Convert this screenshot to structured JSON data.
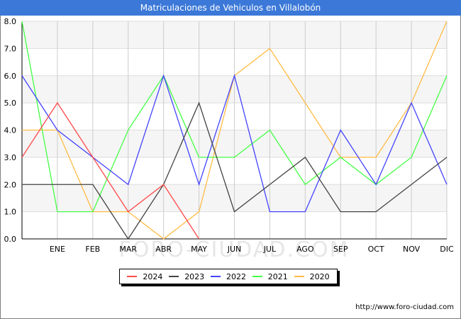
{
  "title": "Matriculaciones de Vehiculos en Villalobón",
  "footer_url": "http://www.foro-ciudad.com",
  "watermark": "FORO-CIUDAD.COM",
  "chart_data": {
    "type": "line",
    "title": "Matriculaciones de Vehiculos en Villalobón",
    "xlabel": "",
    "ylabel": "",
    "categories": [
      "",
      "ENE",
      "FEB",
      "MAR",
      "ABR",
      "MAY",
      "JUN",
      "JUL",
      "AGO",
      "SEP",
      "OCT",
      "NOV",
      "DIC"
    ],
    "ylim": [
      0,
      8
    ],
    "yticks": [
      "0.0",
      "1.0",
      "2.0",
      "3.0",
      "4.0",
      "5.0",
      "6.0",
      "7.0",
      "8.0"
    ],
    "grid": true,
    "legend_position": "bottom-center",
    "series": [
      {
        "name": "2024",
        "color": "#ff4a4a",
        "values": [
          3,
          5,
          3,
          1,
          2,
          0,
          null,
          null,
          null,
          null,
          null,
          null,
          null
        ]
      },
      {
        "name": "2023",
        "color": "#444444",
        "values": [
          2,
          2,
          2,
          0,
          2,
          5,
          1,
          2,
          3,
          1,
          1,
          2,
          3
        ]
      },
      {
        "name": "2022",
        "color": "#4444ff",
        "values": [
          6,
          4,
          3,
          2,
          6,
          2,
          6,
          1,
          1,
          4,
          2,
          5,
          2
        ]
      },
      {
        "name": "2021",
        "color": "#44ff44",
        "values": [
          8,
          1,
          1,
          4,
          6,
          3,
          3,
          4,
          2,
          3,
          2,
          3,
          6
        ]
      },
      {
        "name": "2020",
        "color": "#ffbb44",
        "values": [
          4,
          4,
          1,
          1,
          0,
          1,
          6,
          7,
          5,
          3,
          3,
          5,
          8
        ]
      }
    ]
  }
}
